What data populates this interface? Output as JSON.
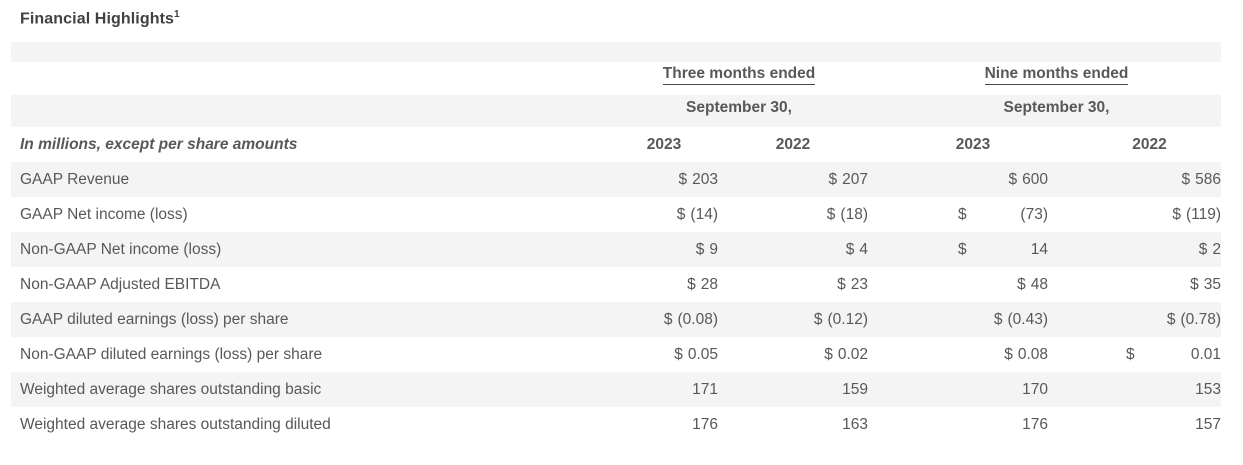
{
  "page": {
    "title": "Financial Highlights",
    "title_superscript": "1"
  },
  "table": {
    "group_headers": [
      {
        "label": "Three months ended",
        "sublabel": "September 30,"
      },
      {
        "label": "Nine months ended",
        "sublabel": "September 30,"
      }
    ],
    "units_note": "In millions, except per share amounts",
    "year_columns": [
      "2023",
      "2022",
      "2023",
      "2022"
    ],
    "rows": [
      {
        "label": "GAAP Revenue",
        "cells": [
          {
            "cur": "$",
            "val": "203"
          },
          {
            "cur": "$",
            "val": "207"
          },
          {
            "cur": "$",
            "val": "600"
          },
          {
            "cur": "$",
            "val": "586"
          }
        ]
      },
      {
        "label": "GAAP Net income (loss)",
        "cells": [
          {
            "cur": "$",
            "val": "(14)"
          },
          {
            "cur": "$",
            "val": "(18)"
          },
          {
            "cur": "$",
            "val": "(73)",
            "split": true
          },
          {
            "cur": "$",
            "val": "(119)"
          }
        ]
      },
      {
        "label": "Non-GAAP Net income (loss)",
        "cells": [
          {
            "cur": "$",
            "val": "9"
          },
          {
            "cur": "$",
            "val": "4"
          },
          {
            "cur": "$",
            "val": "14",
            "split": true
          },
          {
            "cur": "$",
            "val": "2"
          }
        ]
      },
      {
        "label": "Non-GAAP Adjusted EBITDA",
        "cells": [
          {
            "cur": "$",
            "val": "28"
          },
          {
            "cur": "$",
            "val": "23"
          },
          {
            "cur": "$",
            "val": "48"
          },
          {
            "cur": "$",
            "val": "35"
          }
        ]
      },
      {
        "label": "GAAP diluted earnings (loss) per share",
        "cells": [
          {
            "cur": "$",
            "val": "(0.08)"
          },
          {
            "cur": "$",
            "val": "(0.12)"
          },
          {
            "cur": "$",
            "val": "(0.43)"
          },
          {
            "cur": "$",
            "val": "(0.78)"
          }
        ]
      },
      {
        "label": "Non-GAAP diluted earnings (loss) per share",
        "cells": [
          {
            "cur": "$",
            "val": "0.05"
          },
          {
            "cur": "$",
            "val": "0.02"
          },
          {
            "cur": "$",
            "val": "0.08"
          },
          {
            "cur": "$",
            "val": "0.01",
            "split": true
          }
        ]
      },
      {
        "label": "Weighted average shares outstanding basic",
        "cells": [
          {
            "cur": "",
            "val": "171"
          },
          {
            "cur": "",
            "val": "159"
          },
          {
            "cur": "",
            "val": "170"
          },
          {
            "cur": "",
            "val": "153"
          }
        ]
      },
      {
        "label": "Weighted average shares outstanding diluted",
        "cells": [
          {
            "cur": "",
            "val": "176"
          },
          {
            "cur": "",
            "val": "163"
          },
          {
            "cur": "",
            "val": "176"
          },
          {
            "cur": "",
            "val": "157"
          }
        ]
      }
    ]
  },
  "colors": {
    "stripe": "#f4f4f4",
    "body_text": "#58585a",
    "title_text": "#414042"
  }
}
